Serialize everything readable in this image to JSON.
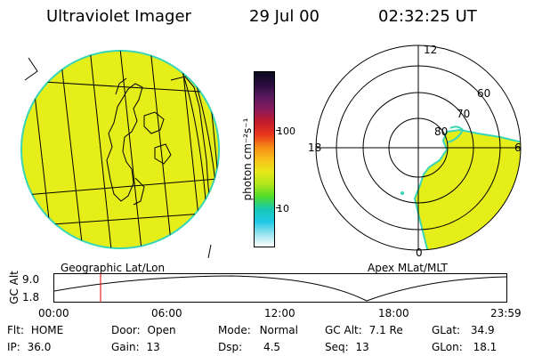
{
  "header": {
    "instrument": "Ultraviolet Imager",
    "date": "29 Jul 00",
    "time": "02:32:25 UT"
  },
  "colors": {
    "background": "#ffffff",
    "aurora_fill": "#e6ee1a",
    "aurora_edge": "#3ad6b4",
    "grid_lines": "#000000",
    "marker": "#e00000"
  },
  "colorbar": {
    "unit": "photon cm⁻²s⁻¹",
    "tick_high": "100",
    "tick_low": "10",
    "colors_top_to_bottom": [
      "#0a0a1e",
      "#2a0c3c",
      "#5a1a5e",
      "#8a1a5c",
      "#c31a2b",
      "#e8351c",
      "#f58a14",
      "#f9c01a",
      "#e8e81a",
      "#b0e61a",
      "#50dc2a",
      "#18c8b4",
      "#1ec8e6",
      "#98e4ee",
      "#ffffff"
    ]
  },
  "left_panel": {
    "caption": "Geographic Lat/Lon"
  },
  "right_panel": {
    "caption": "Apex MLat/MLT",
    "mlt_labels": [
      "12",
      "18",
      "6",
      "0"
    ],
    "lat_labels": [
      "60",
      "70",
      "80"
    ]
  },
  "timeline": {
    "axis_label": "GC Alt",
    "y_ticks": [
      "9.0",
      "1.8"
    ],
    "x_ticks": [
      "00:00",
      "06:00",
      "12:00",
      "18:00",
      "23:59"
    ],
    "current_time_fraction": 0.104
  },
  "footer": {
    "flt_label": "Flt:",
    "flt_value": "HOME",
    "ip_label": "IP:",
    "ip_value": "36.0",
    "door_label": "Door:",
    "door_value": "Open",
    "gain_label": "Gain:",
    "gain_value": "13",
    "mode_label": "Mode:",
    "mode_value": "Normal",
    "dsp_label": "Dsp:",
    "dsp_value": "4.5",
    "gcalt_label": "GC Alt:",
    "gcalt_value": "7.1 Re",
    "seq_label": "Seq:",
    "seq_value": "13",
    "glat_label": "GLat:",
    "glat_value": "34.9",
    "glon_label": "GLon:",
    "glon_value": "18.1"
  }
}
